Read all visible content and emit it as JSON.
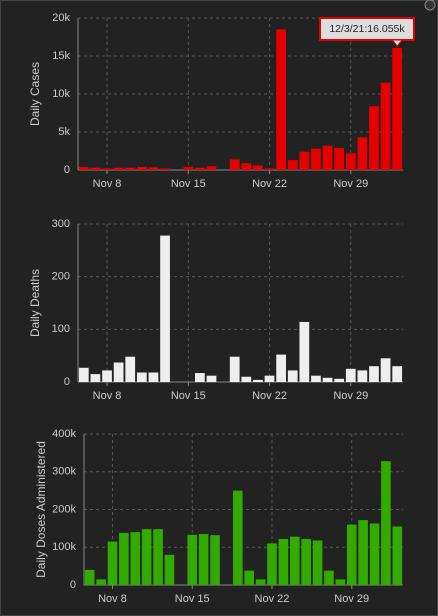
{
  "chart_data": [
    {
      "type": "bar",
      "y_label": "Daily Cases",
      "color": "#e50000",
      "tooltip": "12/3/21:16.055k",
      "categories": [
        null,
        null,
        "Nov 8",
        null,
        null,
        null,
        null,
        null,
        null,
        "Nov 15",
        null,
        null,
        null,
        null,
        null,
        null,
        "Nov 22",
        null,
        null,
        null,
        null,
        null,
        null,
        "Nov 29",
        null,
        null,
        null,
        null
      ],
      "values": [
        400,
        300,
        200,
        300,
        300,
        400,
        350,
        200,
        0,
        400,
        300,
        500,
        0,
        1400,
        900,
        600,
        200,
        18500,
        1300,
        2400,
        2800,
        3200,
        2900,
        2200,
        4300,
        8400,
        11500,
        16055
      ],
      "ylim": [
        0,
        20000
      ],
      "yticks": [
        0,
        {
          "value": 5000,
          "label": "5k"
        },
        {
          "value": 10000,
          "label": "10k"
        },
        {
          "value": 15000,
          "label": "15k"
        },
        {
          "value": 20000,
          "label": "20k"
        }
      ],
      "grid": true
    },
    {
      "type": "bar",
      "y_label": "Daily Deaths",
      "color": "#eeeeee",
      "categories": [
        null,
        null,
        "Nov 8",
        null,
        null,
        null,
        null,
        null,
        null,
        "Nov 15",
        null,
        null,
        null,
        null,
        null,
        null,
        "Nov 22",
        null,
        null,
        null,
        null,
        null,
        null,
        "Nov 29",
        null,
        null,
        null,
        null
      ],
      "values": [
        27,
        15,
        22,
        37,
        48,
        18,
        18,
        278,
        0,
        0,
        17,
        12,
        0,
        48,
        10,
        4,
        12,
        52,
        22,
        114,
        12,
        8,
        6,
        25,
        22,
        30,
        45,
        30
      ],
      "ylim": [
        0,
        300
      ],
      "yticks": [
        0,
        100,
        200,
        300
      ],
      "grid": true
    },
    {
      "type": "bar",
      "y_label": "Daily Doses Administered",
      "color": "#33aa00",
      "categories": [
        null,
        null,
        "Nov 8",
        null,
        null,
        null,
        null,
        null,
        null,
        "Nov 15",
        null,
        null,
        null,
        null,
        null,
        null,
        "Nov 22",
        null,
        null,
        null,
        null,
        null,
        null,
        "Nov 29",
        null,
        null,
        null,
        null
      ],
      "values": [
        40000,
        15000,
        115000,
        138000,
        140000,
        148000,
        148000,
        80000,
        0,
        133000,
        135000,
        132000,
        0,
        250000,
        38000,
        15000,
        110000,
        122000,
        128000,
        122000,
        118000,
        38000,
        15000,
        160000,
        172000,
        163000,
        328000,
        155000
      ],
      "ylim": [
        0,
        400000
      ],
      "yticks": [
        0,
        {
          "value": 100000,
          "label": "100k"
        },
        {
          "value": 200000,
          "label": "200k"
        },
        {
          "value": 300000,
          "label": "300k"
        },
        {
          "value": 400000,
          "label": "400k"
        }
      ],
      "grid": true
    }
  ]
}
